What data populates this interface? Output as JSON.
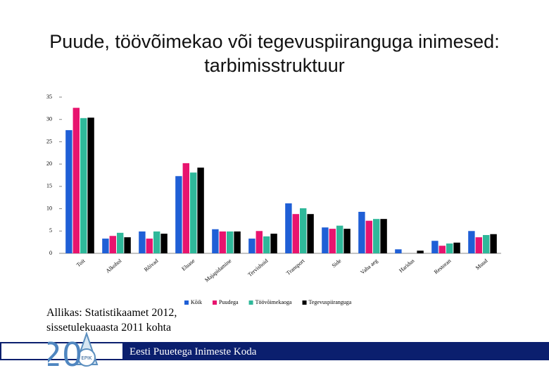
{
  "chart_data": {
    "type": "bar",
    "title": "Puude, töövõimekao või tegevuspiiranguga inimesed: tarbimisstruktuur",
    "categories": [
      "Toit",
      "Alkohol",
      "Rõivad",
      "Eluase",
      "Majapidamine",
      "Tervishoid",
      "Transport",
      "Side",
      "Vaba aeg",
      "Haridus",
      "Restoran",
      "Muud"
    ],
    "series": [
      {
        "name": "Kõik",
        "color": "#1f5fd6",
        "values": [
          27.6,
          3.3,
          4.9,
          17.3,
          5.4,
          3.3,
          11.2,
          5.8,
          9.3,
          0.9,
          2.8,
          5.0
        ]
      },
      {
        "name": "Puudega",
        "color": "#e8146e",
        "values": [
          32.6,
          3.9,
          3.3,
          20.2,
          4.9,
          5.0,
          8.8,
          5.5,
          7.3,
          0,
          1.7,
          3.6
        ]
      },
      {
        "name": "Töövõimekaoga",
        "color": "#2fb89a",
        "values": [
          30.3,
          4.6,
          4.9,
          18.1,
          4.9,
          3.8,
          10.1,
          6.2,
          7.7,
          0,
          2.2,
          4.1
        ]
      },
      {
        "name": "Tegevuspiiranguga",
        "color": "#000000",
        "values": [
          30.4,
          3.6,
          4.4,
          19.2,
          4.9,
          4.4,
          8.8,
          5.5,
          7.7,
          0.6,
          2.4,
          4.3
        ]
      }
    ],
    "ylim": [
      0,
      35
    ],
    "yticks": [
      0,
      5,
      10,
      15,
      20,
      25,
      30,
      35
    ],
    "grid": false,
    "legend": "bottom"
  },
  "source": "Allikas: Statistikaamet 2012, sissetulekuaasta 2011 kohta",
  "footer": "Eesti Puuetega Inimeste Koda",
  "logo": {
    "number": "20",
    "initials": "EPIK"
  }
}
